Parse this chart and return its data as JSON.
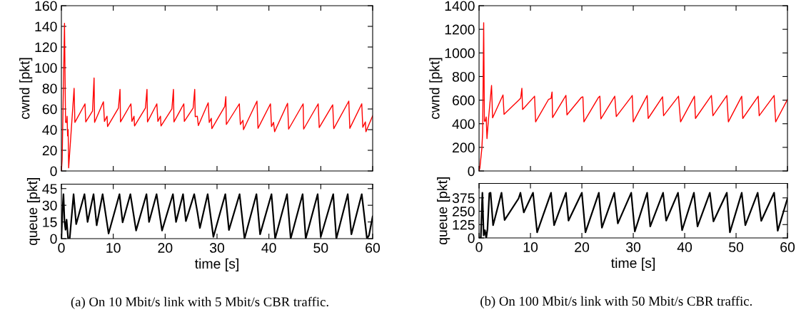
{
  "chart_data": [
    {
      "type": "line",
      "ylabel": "cwnd [pkt]",
      "xlim": [
        0,
        60
      ],
      "xticks": [
        0,
        10,
        20,
        30,
        40,
        50,
        60
      ],
      "ylim": [
        0,
        160
      ],
      "yticks": [
        0,
        20,
        40,
        60,
        80,
        100,
        120,
        140,
        160
      ],
      "tick_labels": "y",
      "series": [
        {
          "color": "#ff0000",
          "x": [
            0,
            0.15,
            0.6,
            0.8,
            1.0,
            1.1,
            1.2,
            1.3,
            1.4,
            2.45,
            2.6,
            4.55,
            4.7,
            6.0,
            6.3,
            6.4,
            8.1,
            8.3,
            8.8,
            8.9,
            11.0,
            11.3,
            11.4,
            13.4,
            13.6,
            14.0,
            14.1,
            16.2,
            16.5,
            16.6,
            18.4,
            18.6,
            19.1,
            19.2,
            21.3,
            21.6,
            21.7,
            23.6,
            23.7,
            25.4,
            25.7,
            25.8,
            26.2,
            26.4,
            28.3,
            28.5,
            28.9,
            29.0,
            31.5,
            31.7,
            31.8,
            34.3,
            34.5,
            35.0,
            35.1,
            37.7,
            37.9,
            40.3,
            40.5,
            40.9,
            41.1,
            43.6,
            43.8,
            46.6,
            46.7,
            49.5,
            49.7,
            52.3,
            52.5,
            55.4,
            55.6,
            57.9,
            58.1,
            58.6,
            58.7,
            60
          ],
          "values": [
            0,
            11,
            143,
            47,
            47,
            53,
            34,
            40,
            3,
            80,
            47,
            65,
            47.5,
            58,
            90,
            47,
            67,
            48,
            53,
            43,
            61,
            79,
            47.5,
            65,
            48,
            53,
            43.6,
            61,
            79,
            47.5,
            65,
            48,
            53,
            43.6,
            60,
            79,
            47.5,
            65,
            48,
            61,
            79,
            52.6,
            53,
            44,
            66,
            47,
            51,
            41,
            62.5,
            72,
            45,
            65,
            45,
            49,
            40,
            67.6,
            41.3,
            65,
            43,
            47,
            38,
            65.5,
            40.5,
            65,
            40.5,
            65,
            42,
            64,
            41,
            67.6,
            41.3,
            65,
            42.3,
            47.5,
            38,
            53.4
          ]
        }
      ]
    },
    {
      "type": "line",
      "ylabel": "queue [pkt]",
      "xlabel": "time [s]",
      "xlim": [
        0,
        60
      ],
      "xticks": [
        0,
        10,
        20,
        30,
        40,
        50,
        60
      ],
      "ylim": [
        0,
        49
      ],
      "yticks": [
        0,
        15,
        30,
        45
      ],
      "annotations": [
        "(a) On 10 Mbit/s link with 5 Mbit/s CBR traffic."
      ],
      "series": [
        {
          "color": "#000000",
          "x": [
            0,
            0.2,
            0.4,
            0.6,
            0.8,
            1.0,
            1.3,
            1.6,
            2.35,
            2.85,
            4.45,
            5.05,
            6.2,
            6.8,
            7.95,
            9.1,
            11.2,
            11.8,
            13.3,
            14.4,
            16.4,
            16.9,
            18.35,
            19.4,
            21.5,
            22.1,
            23.45,
            24.0,
            25.6,
            26.25,
            26.7,
            28.2,
            29.3,
            31.6,
            32.3,
            34.35,
            35.3,
            37.6,
            38.3,
            40.5,
            41.2,
            43.5,
            44.2,
            46.5,
            47.1,
            49.4,
            50.0,
            52.4,
            53.0,
            55.2,
            55.9,
            57.9,
            58.9,
            59.3,
            60
          ],
          "values": [
            0,
            25,
            40,
            15,
            8,
            17,
            0,
            0,
            40,
            13,
            40,
            15,
            40,
            12,
            40,
            4.6,
            40,
            14.6,
            40,
            7.3,
            40,
            15,
            40,
            7.3,
            40,
            15,
            40,
            15.8,
            40,
            23,
            9.6,
            40,
            1.6,
            40,
            7.8,
            40,
            0,
            40,
            3.9,
            40,
            0,
            40,
            0,
            40,
            0,
            40,
            1.6,
            40,
            0,
            40,
            3.9,
            40,
            0,
            3,
            20
          ]
        }
      ]
    },
    {
      "type": "line",
      "ylabel": "cwnd [pkt]",
      "xlim": [
        0,
        60
      ],
      "xticks": [
        0,
        10,
        20,
        30,
        40,
        50,
        60
      ],
      "ylim": [
        0,
        1400
      ],
      "yticks": [
        0,
        200,
        400,
        600,
        800,
        1000,
        1200,
        1400
      ],
      "tick_labels": "y",
      "series": [
        {
          "color": "#ff0000",
          "x": [
            0,
            0.15,
            0.55,
            0.7,
            0.9,
            1.04,
            1.2,
            1.39,
            1.54,
            1.8,
            2.43,
            2.63,
            4.66,
            4.86,
            7.73,
            8.1,
            8.33,
            8.47,
            10.8,
            11.0,
            13.5,
            14.0,
            14.2,
            14.3,
            16.9,
            17.1,
            19.9,
            20.2,
            20.4,
            23.2,
            23.5,
            23.7,
            26.4,
            26.7,
            29.5,
            29.8,
            30.0,
            32.7,
            32.9,
            35.7,
            35.9,
            38.8,
            39.2,
            41.9,
            42.1,
            44.9,
            45.2,
            45.5,
            48.2,
            48.5,
            51.1,
            51.3,
            54.3,
            54.5,
            57.4,
            57.7,
            60
          ],
          "values": [
            0,
            23,
            194,
            331,
            1256,
            422,
            422,
            457,
            274,
            422,
            724,
            450,
            644,
            480,
            600,
            617,
            701,
            521,
            633,
            416,
            605,
            615,
            669,
            452,
            640,
            475,
            623,
            628,
            416,
            621,
            633,
            441,
            633,
            461,
            621,
            639,
            416,
            639,
            445,
            628,
            468,
            633,
            416,
            633,
            445,
            621,
            639,
            468,
            639,
            416,
            633,
            445,
            633,
            468,
            639,
            416,
            605
          ]
        }
      ]
    },
    {
      "type": "line",
      "ylabel": "queue [pkt]",
      "xlabel": "time [s]",
      "xlim": [
        0,
        60
      ],
      "xticks": [
        0,
        10,
        20,
        30,
        40,
        50,
        60
      ],
      "ylim": [
        0,
        510
      ],
      "yticks": [
        0,
        125,
        250,
        375
      ],
      "annotations": [
        "(b) On 100 Mbit/s link with 50 Mbit/s CBR traffic."
      ],
      "series": [
        {
          "color": "#000000",
          "x": [
            0,
            0.35,
            0.65,
            0.9,
            1.14,
            1.4,
            1.64,
            2.0,
            2.24,
            2.73,
            4.37,
            4.97,
            7.7,
            8.05,
            8.7,
            10.5,
            11.3,
            14.0,
            14.6,
            16.9,
            17.4,
            20.0,
            20.7,
            23.3,
            23.9,
            26.3,
            27.0,
            29.6,
            30.3,
            32.7,
            33.3,
            35.8,
            36.4,
            38.7,
            39.5,
            41.8,
            42.5,
            44.9,
            45.6,
            48.2,
            48.8,
            51.1,
            51.8,
            54.2,
            54.9,
            57.4,
            58.1,
            60
          ],
          "values": [
            0,
            5,
            423,
            24,
            72,
            0,
            84,
            418,
            423,
            119,
            423,
            167,
            370,
            423,
            239,
            423,
            53,
            423,
            119,
            423,
            162,
            423,
            53,
            423,
            96,
            423,
            136,
            423,
            60,
            423,
            108,
            423,
            162,
            423,
            72,
            423,
            108,
            423,
            155,
            423,
            53,
            423,
            119,
            423,
            160,
            423,
            67,
            370
          ]
        }
      ]
    }
  ]
}
